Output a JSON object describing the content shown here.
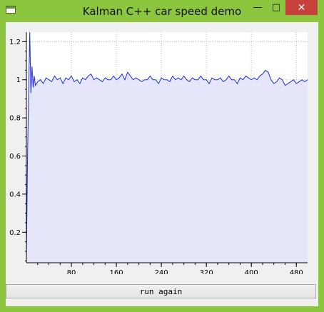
{
  "window": {
    "title": "Kalman C++ car speed demo",
    "controls": {
      "minimize": "—",
      "maximize": "□",
      "close": "✕"
    }
  },
  "button": {
    "label": "run again"
  },
  "colors": {
    "frame": "#8cc63e",
    "line": "#1f2fe0",
    "fill": "#e6e6fb",
    "grid": "#b8b8b8"
  },
  "chart_data": {
    "type": "area",
    "title": "",
    "xlabel": "",
    "ylabel": "",
    "xlim": [
      0,
      500
    ],
    "ylim": [
      0.04,
      1.25
    ],
    "xticks": [
      80,
      160,
      240,
      320,
      400,
      480
    ],
    "yticks": [
      0.2,
      0.4,
      0.6,
      0.8,
      1,
      1.2
    ],
    "xtick_labels": [
      "80",
      "160",
      "240",
      "320",
      "400",
      "480"
    ],
    "ytick_labels": [
      "0.2",
      "0.4",
      "0.6",
      "0.8",
      "1",
      "1.2"
    ],
    "grid": true,
    "series": [
      {
        "x": [
          0,
          2,
          4,
          6,
          8,
          10,
          12,
          14,
          16,
          20,
          25,
          30,
          35,
          40,
          45,
          50,
          55,
          60,
          65,
          70,
          75,
          80,
          85,
          90,
          95,
          100,
          105,
          110,
          115,
          120,
          125,
          130,
          135,
          140,
          145,
          150,
          155,
          160,
          165,
          170,
          175,
          180,
          185,
          190,
          195,
          200,
          205,
          210,
          215,
          220,
          225,
          230,
          235,
          240,
          245,
          250,
          255,
          260,
          265,
          270,
          275,
          280,
          285,
          290,
          295,
          300,
          305,
          310,
          315,
          320,
          325,
          330,
          335,
          340,
          345,
          350,
          355,
          360,
          365,
          370,
          375,
          380,
          385,
          390,
          395,
          400,
          405,
          410,
          415,
          420,
          425,
          430,
          435,
          440,
          445,
          450,
          455,
          460,
          465,
          470,
          475,
          480,
          485,
          490,
          495,
          500
        ],
        "y": [
          0.08,
          0.6,
          0.95,
          1.25,
          0.93,
          1.07,
          0.96,
          1.02,
          0.97,
          0.99,
          1.0,
          0.98,
          1.01,
          1.0,
          0.99,
          1.02,
          1.0,
          1.01,
          0.98,
          1.01,
          1.0,
          1.02,
          0.99,
          1.0,
          0.98,
          1.01,
          1.0,
          1.02,
          1.03,
          1.0,
          1.01,
          1.0,
          0.99,
          1.01,
          1.0,
          1.0,
          1.02,
          1.0,
          1.01,
          1.03,
          1.0,
          1.04,
          1.02,
          1.0,
          1.01,
          1.0,
          0.99,
          1.0,
          1.0,
          1.02,
          1.0,
          1.0,
          0.98,
          1.01,
          1.0,
          1.0,
          0.99,
          1.02,
          1.0,
          1.01,
          1.0,
          1.02,
          1.0,
          0.99,
          1.01,
          1.0,
          1.0,
          1.02,
          1.0,
          1.0,
          0.98,
          1.01,
          1.0,
          1.0,
          1.01,
          0.99,
          1.0,
          1.02,
          1.0,
          1.0,
          0.98,
          1.01,
          1.0,
          1.02,
          1.01,
          1.0,
          1.01,
          1.0,
          1.02,
          1.03,
          1.05,
          1.04,
          1.0,
          0.98,
          0.99,
          1.01,
          1.0,
          0.97,
          0.98,
          0.99,
          1.0,
          0.98,
          0.99,
          1.0,
          0.99,
          1.0
        ]
      }
    ]
  }
}
